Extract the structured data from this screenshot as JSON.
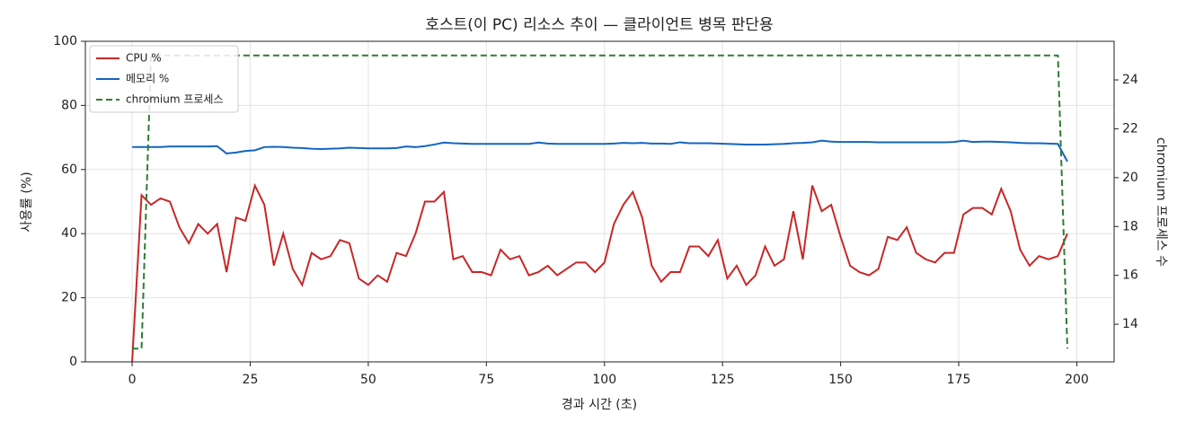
{
  "chart_data": {
    "type": "line",
    "title": "호스트(이 PC) 리소스 추이 — 클라이언트 병목 판단용",
    "x_label": "경과 시간 (초)",
    "y_label": "사용률 (%)",
    "y2_label": "chromium 프로세스 수",
    "x": [
      0,
      2,
      4,
      6,
      8,
      10,
      12,
      14,
      16,
      18,
      20,
      22,
      24,
      26,
      28,
      30,
      32,
      34,
      36,
      38,
      40,
      42,
      44,
      46,
      48,
      50,
      52,
      54,
      56,
      58,
      60,
      62,
      64,
      66,
      68,
      70,
      72,
      74,
      76,
      78,
      80,
      82,
      84,
      86,
      88,
      90,
      92,
      94,
      96,
      98,
      100,
      102,
      104,
      106,
      108,
      110,
      112,
      114,
      116,
      118,
      120,
      122,
      124,
      126,
      128,
      130,
      132,
      134,
      136,
      138,
      140,
      142,
      144,
      146,
      148,
      150,
      152,
      154,
      156,
      158,
      160,
      162,
      164,
      166,
      168,
      170,
      172,
      174,
      176,
      178,
      180,
      182,
      184,
      186,
      188,
      190,
      192,
      194,
      196,
      198
    ],
    "series": [
      {
        "name": "CPU %",
        "color": "#c62828",
        "linestyle": "solid",
        "values": [
          0,
          52,
          49,
          51,
          50,
          42,
          37,
          43,
          40,
          43,
          28,
          45,
          44,
          55,
          49,
          30,
          40,
          29,
          24,
          34,
          32,
          33,
          38,
          37,
          26,
          24,
          27,
          25,
          34,
          33,
          40,
          50,
          50,
          53,
          32,
          33,
          28,
          28,
          27,
          35,
          32,
          33,
          27,
          28,
          30,
          27,
          29,
          31,
          31,
          28,
          31,
          43,
          49,
          53,
          45,
          30,
          25,
          28,
          28,
          36,
          36,
          33,
          38,
          26,
          30,
          24,
          27,
          36,
          30,
          32,
          47,
          32,
          55,
          47,
          49,
          39,
          30,
          28,
          27,
          29,
          39,
          38,
          42,
          34,
          32,
          31,
          34,
          34,
          46,
          48,
          48,
          46,
          54,
          47,
          35,
          30,
          33,
          32,
          33,
          40
        ]
      },
      {
        "name": "메모리 %",
        "color": "#1565c0",
        "linestyle": "solid",
        "values": [
          67,
          67,
          67,
          67,
          67.2,
          67.2,
          67.2,
          67.2,
          67.2,
          67.3,
          65,
          65.3,
          65.8,
          66,
          67,
          67.1,
          67,
          66.8,
          66.7,
          66.5,
          66.4,
          66.5,
          66.6,
          66.8,
          66.7,
          66.6,
          66.6,
          66.6,
          66.7,
          67.2,
          67,
          67.3,
          67.8,
          68.4,
          68.2,
          68.1,
          68,
          68,
          68,
          68,
          68,
          68,
          68,
          68.4,
          68.1,
          68,
          68,
          68,
          68,
          68,
          68,
          68.1,
          68.3,
          68.2,
          68.3,
          68.1,
          68.1,
          68,
          68.5,
          68.2,
          68.2,
          68.2,
          68.1,
          68,
          67.9,
          67.8,
          67.8,
          67.8,
          67.9,
          68,
          68.2,
          68.3,
          68.5,
          69,
          68.7,
          68.6,
          68.6,
          68.6,
          68.6,
          68.5,
          68.5,
          68.5,
          68.5,
          68.5,
          68.5,
          68.5,
          68.5,
          68.6,
          69,
          68.6,
          68.7,
          68.7,
          68.6,
          68.5,
          68.3,
          68.2,
          68.2,
          68.1,
          68,
          62.5
        ]
      },
      {
        "name": "chromium 프로세스",
        "color": "#2e7d32",
        "linestyle": "dashed",
        "axis": "y2",
        "values": [
          13,
          13,
          25,
          25,
          25,
          25,
          25,
          25,
          25,
          25,
          25,
          25,
          25,
          25,
          25,
          25,
          25,
          25,
          25,
          25,
          25,
          25,
          25,
          25,
          25,
          25,
          25,
          25,
          25,
          25,
          25,
          25,
          25,
          25,
          25,
          25,
          25,
          25,
          25,
          25,
          25,
          25,
          25,
          25,
          25,
          25,
          25,
          25,
          25,
          25,
          25,
          25,
          25,
          25,
          25,
          25,
          25,
          25,
          25,
          25,
          25,
          25,
          25,
          25,
          25,
          25,
          25,
          25,
          25,
          25,
          25,
          25,
          25,
          25,
          25,
          25,
          25,
          25,
          25,
          25,
          25,
          25,
          25,
          25,
          25,
          25,
          25,
          25,
          25,
          25,
          25,
          25,
          25,
          25,
          25,
          25,
          25,
          25,
          25,
          13
        ]
      }
    ],
    "xlim": [
      -9.9,
      207.9
    ],
    "xticks": [
      0,
      25,
      50,
      75,
      100,
      125,
      150,
      175,
      200
    ],
    "ylim": [
      0,
      100
    ],
    "yticks": [
      0,
      20,
      40,
      60,
      80,
      100
    ],
    "y2lim": [
      12.46,
      25.58
    ],
    "y2ticks": [
      14,
      16,
      18,
      20,
      22,
      24
    ],
    "grid": true,
    "legend": "upper left"
  }
}
